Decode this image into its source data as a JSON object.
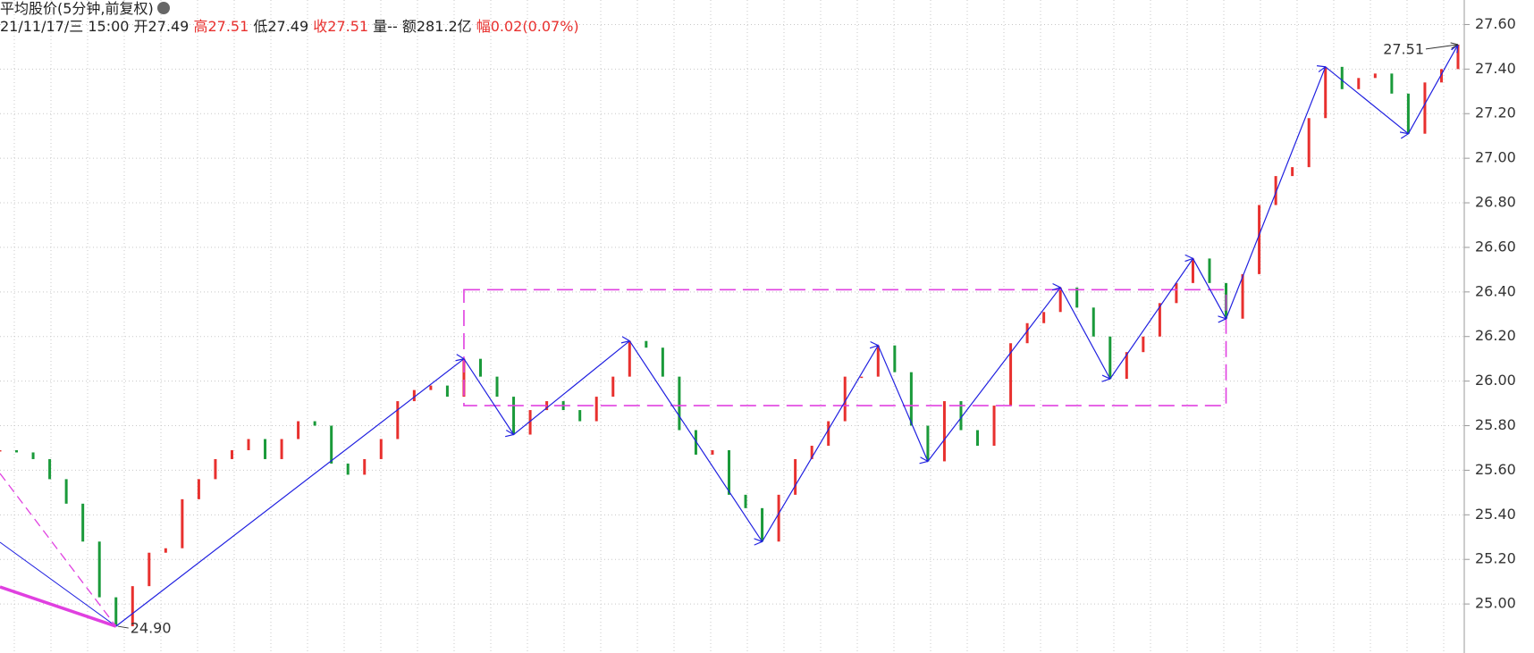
{
  "chart_data": {
    "type": "candle-line",
    "title": "平均股价(5分钟,前复权)",
    "info": {
      "date": "21/11/17/三 15:00",
      "open": "开27.49",
      "high": "高27.51",
      "low": "低27.49",
      "close": "收27.51",
      "volume": "量--",
      "amount": "额281.2亿",
      "change": "幅0.02(0.07%)"
    },
    "values": [
      25.69,
      25.68,
      25.65,
      25.56,
      25.45,
      25.28,
      25.03,
      24.9,
      25.08,
      25.23,
      25.25,
      25.47,
      25.56,
      25.65,
      25.69,
      25.74,
      25.65,
      25.74,
      25.82,
      25.8,
      25.63,
      25.58,
      25.65,
      25.74,
      25.91,
      25.96,
      25.98,
      25.93,
      26.1,
      26.02,
      25.93,
      25.76,
      25.87,
      25.91,
      25.87,
      25.82,
      25.93,
      26.02,
      26.18,
      26.15,
      26.02,
      25.78,
      25.67,
      25.69,
      25.49,
      25.43,
      25.28,
      25.49,
      25.65,
      25.71,
      25.82,
      26.02,
      26.02,
      26.16,
      26.04,
      25.8,
      25.64,
      25.91,
      25.78,
      25.71,
      25.89,
      26.17,
      26.26,
      26.31,
      26.42,
      26.33,
      26.2,
      26.01,
      26.13,
      26.2,
      26.35,
      26.44,
      26.55,
      26.44,
      26.28,
      26.48,
      26.79,
      26.92,
      26.96,
      27.18,
      27.41,
      27.31,
      27.36,
      27.38,
      27.29,
      27.11,
      27.34,
      27.4,
      27.51
    ],
    "up_color": "#e8302e",
    "down_color": "#1a9a3a",
    "zigzag": {
      "color": "#2020e0",
      "values": [
        24.9,
        26.1,
        25.76,
        26.18,
        25.28,
        26.16,
        25.64,
        26.42,
        26.01,
        26.55,
        26.28,
        27.41,
        27.11,
        27.51
      ]
    },
    "box": {
      "color": "#e040e0",
      "high": 26.41,
      "low": 25.89
    },
    "annotations": {
      "low": "24.90",
      "last": "27.51"
    },
    "ylim": [
      24.78,
      27.71
    ],
    "yticks": [
      {
        "value": 25,
        "label": "25.00"
      },
      {
        "value": 25.2,
        "label": "25.20"
      },
      {
        "value": 25.4,
        "label": "25.40"
      },
      {
        "value": 25.6,
        "label": "25.60"
      },
      {
        "value": 25.8,
        "label": "25.80"
      },
      {
        "value": 26,
        "label": "26.00"
      },
      {
        "value": 26.2,
        "label": "26.20"
      },
      {
        "value": 26.4,
        "label": "26.40"
      },
      {
        "value": 26.6,
        "label": "26.60"
      },
      {
        "value": 26.8,
        "label": "26.80"
      },
      {
        "value": 27,
        "label": "27.00"
      },
      {
        "value": 27.2,
        "label": "27.20"
      },
      {
        "value": 27.4,
        "label": "27.40"
      },
      {
        "value": 27.6,
        "label": "27.60"
      }
    ],
    "grid": true
  }
}
